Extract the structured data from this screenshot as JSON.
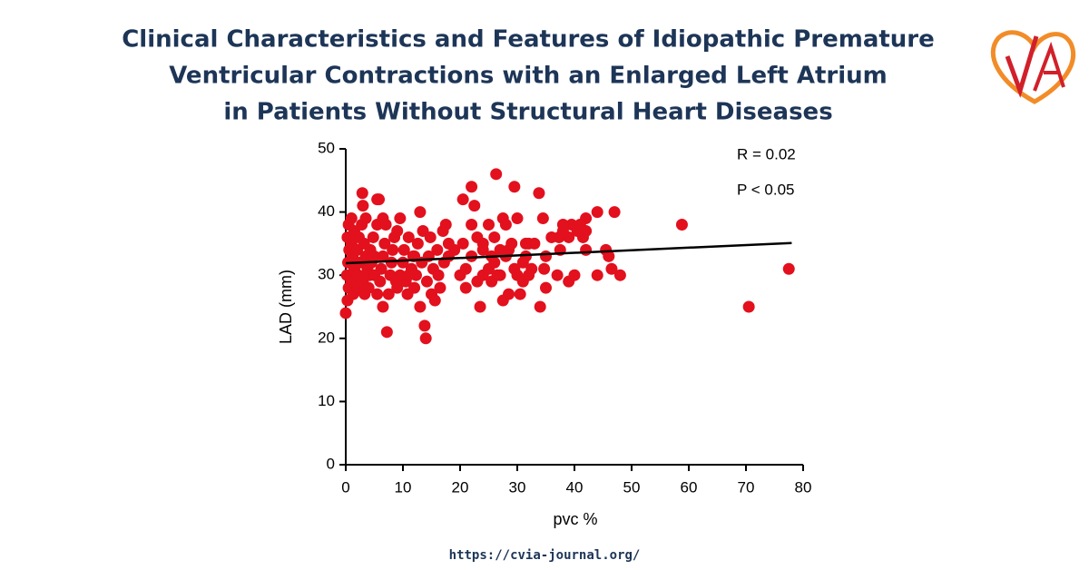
{
  "chart_data": {
    "type": "scatter",
    "title": [
      "Clinical Characteristics and Features of Idiopathic Premature",
      "Ventricular Contractions with an Enlarged Left Atrium",
      "in Patients Without Structural Heart Diseases"
    ],
    "x_label": "pvc %",
    "y_label": "LAD (mm)",
    "annotations": [
      "R = 0.02",
      "P < 0.05"
    ],
    "color": "#e3101d",
    "x": [
      58.8,
      70.5,
      77.5,
      47,
      44,
      42,
      41,
      39.5,
      38,
      37.3,
      36,
      35,
      34.7,
      35,
      37,
      39,
      40,
      41.5,
      42,
      42,
      40.5,
      45.5,
      46,
      46.5,
      48,
      44,
      39,
      37.5,
      38,
      20.5,
      22,
      22.5,
      22,
      24,
      25,
      25.5,
      26,
      26.3,
      27,
      27.5,
      28,
      28.5,
      29.5,
      30,
      29,
      30,
      31,
      31.5,
      32,
      30.5,
      28.5,
      27.5,
      23.5,
      33.8,
      34,
      34.5,
      33,
      32.5,
      21,
      20,
      21,
      23,
      24,
      25,
      26,
      27,
      28,
      29.5,
      31,
      20.5,
      19,
      18,
      22,
      24,
      25.5,
      26.5,
      23,
      31.5,
      32,
      0,
      0.3,
      0.5,
      0.2,
      0.4,
      0.6,
      0.3,
      0.5,
      1,
      1.5,
      1,
      1.2,
      1.5,
      1,
      1.3,
      2,
      2.2,
      2.5,
      2,
      2.3,
      2.8,
      3,
      2.9,
      3.5,
      3.2,
      3.5,
      3.8,
      3,
      3.3,
      4,
      4.2,
      4.5,
      4.3,
      4.8,
      5,
      5.5,
      5.8,
      5.5,
      5,
      5.5,
      6,
      6.2,
      6.5,
      6.8,
      6.5,
      7,
      6.5,
      7.2,
      7.5,
      7.8,
      8,
      8.2,
      8.5,
      9,
      9.5,
      9,
      9.5,
      10,
      10.2,
      10.5,
      10.8,
      11,
      11.5,
      11.8,
      12,
      12.3,
      12.6,
      13,
      13,
      13.5,
      13.3,
      13.8,
      14,
      14.2,
      14.5,
      14.8,
      15,
      15.3,
      15.6,
      16,
      16.2,
      16.5,
      17,
      17.5,
      17.2,
      18,
      8.8,
      11,
      12
    ],
    "values": [
      38,
      25,
      31,
      40,
      40,
      39,
      38,
      38,
      38,
      36,
      36,
      33,
      31,
      28,
      30,
      29,
      30,
      36,
      34,
      37,
      37,
      34,
      33,
      31,
      30,
      30,
      36,
      34,
      37,
      42,
      44,
      41,
      38,
      35,
      38,
      33,
      36,
      46,
      30,
      39,
      38,
      34,
      44,
      39,
      35,
      30,
      29,
      33,
      35,
      27,
      27,
      26,
      25,
      43,
      25,
      39,
      35,
      31,
      28,
      30,
      31,
      29,
      30,
      31,
      32,
      34,
      33,
      31,
      32,
      35,
      34,
      33,
      33,
      34,
      29,
      30,
      36,
      35,
      30,
      24,
      26,
      28,
      30,
      32,
      34,
      36,
      38,
      39,
      37,
      35,
      33,
      31,
      29,
      27,
      28,
      30,
      32,
      34,
      36,
      38,
      41,
      43,
      39,
      35,
      33,
      31,
      29,
      27,
      28,
      30,
      32,
      34,
      36,
      33,
      42,
      42,
      38,
      30,
      27,
      29,
      31,
      33,
      35,
      39,
      38,
      25,
      21,
      27,
      30,
      32,
      34,
      36,
      37,
      39,
      28,
      30,
      32,
      34,
      29,
      27,
      36,
      31,
      33,
      28,
      30,
      35,
      40,
      25,
      37,
      32,
      22,
      20,
      29,
      33,
      36,
      27,
      31,
      26,
      34,
      30,
      28,
      37,
      38,
      32,
      35,
      29,
      30,
      33
    ],
    "trend_line": {
      "x": [
        0,
        78
      ],
      "values": [
        31.9,
        35.1
      ],
      "color": "#000000"
    },
    "xlim": [
      0,
      80
    ],
    "xticks": [
      0,
      10,
      20,
      30,
      40,
      50,
      60,
      70,
      80
    ],
    "ylim": [
      0,
      50
    ],
    "yticks": [
      0,
      10,
      20,
      30,
      40,
      50
    ],
    "grid": false
  },
  "source_url": "https://cvia-journal.org/"
}
